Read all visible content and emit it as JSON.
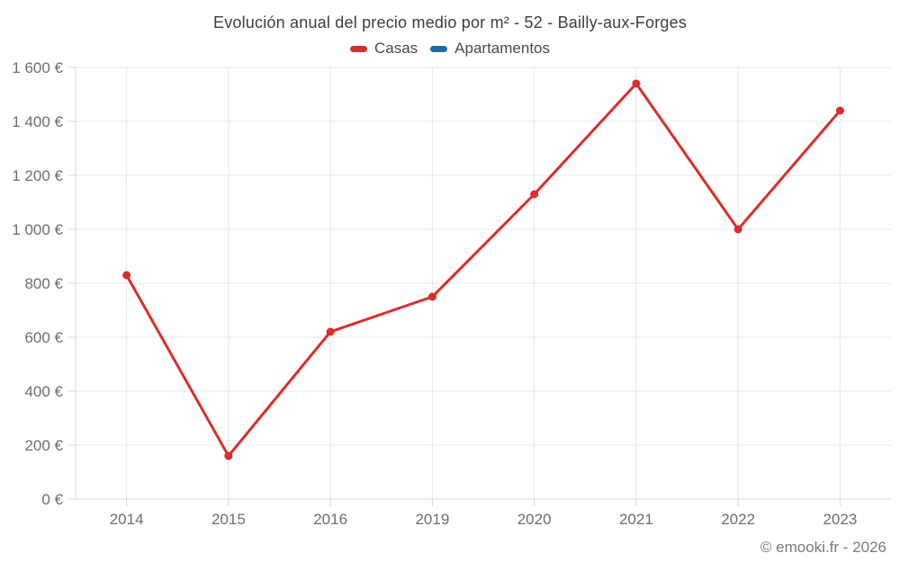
{
  "chart_data": {
    "type": "line",
    "title": "Evolución anual del precio medio por m² - 52 - Bailly-aux-Forges",
    "categories": [
      "2014",
      "2015",
      "2016",
      "2019",
      "2020",
      "2021",
      "2022",
      "2023"
    ],
    "series": [
      {
        "name": "Casas",
        "color": "#dc2c2c",
        "values": [
          830,
          160,
          620,
          750,
          1130,
          1540,
          1000,
          1440
        ]
      },
      {
        "name": "Apartamentos",
        "color": "#1c6ea4",
        "values": []
      }
    ],
    "ylim": [
      0,
      1600
    ],
    "y_tick_step": 200,
    "y_ticks": [
      "0 €",
      "200 €",
      "400 €",
      "600 €",
      "800 €",
      "1 000 €",
      "1 200 €",
      "1 400 €",
      "1 600 €"
    ],
    "grid": true,
    "legend_position": "top",
    "colors": {
      "grid": "#e8e8e8",
      "axis": "#d8d8d8",
      "tick_label": "#6e6e6e"
    }
  },
  "footer": {
    "credit": "© emooki.fr - 2026"
  }
}
